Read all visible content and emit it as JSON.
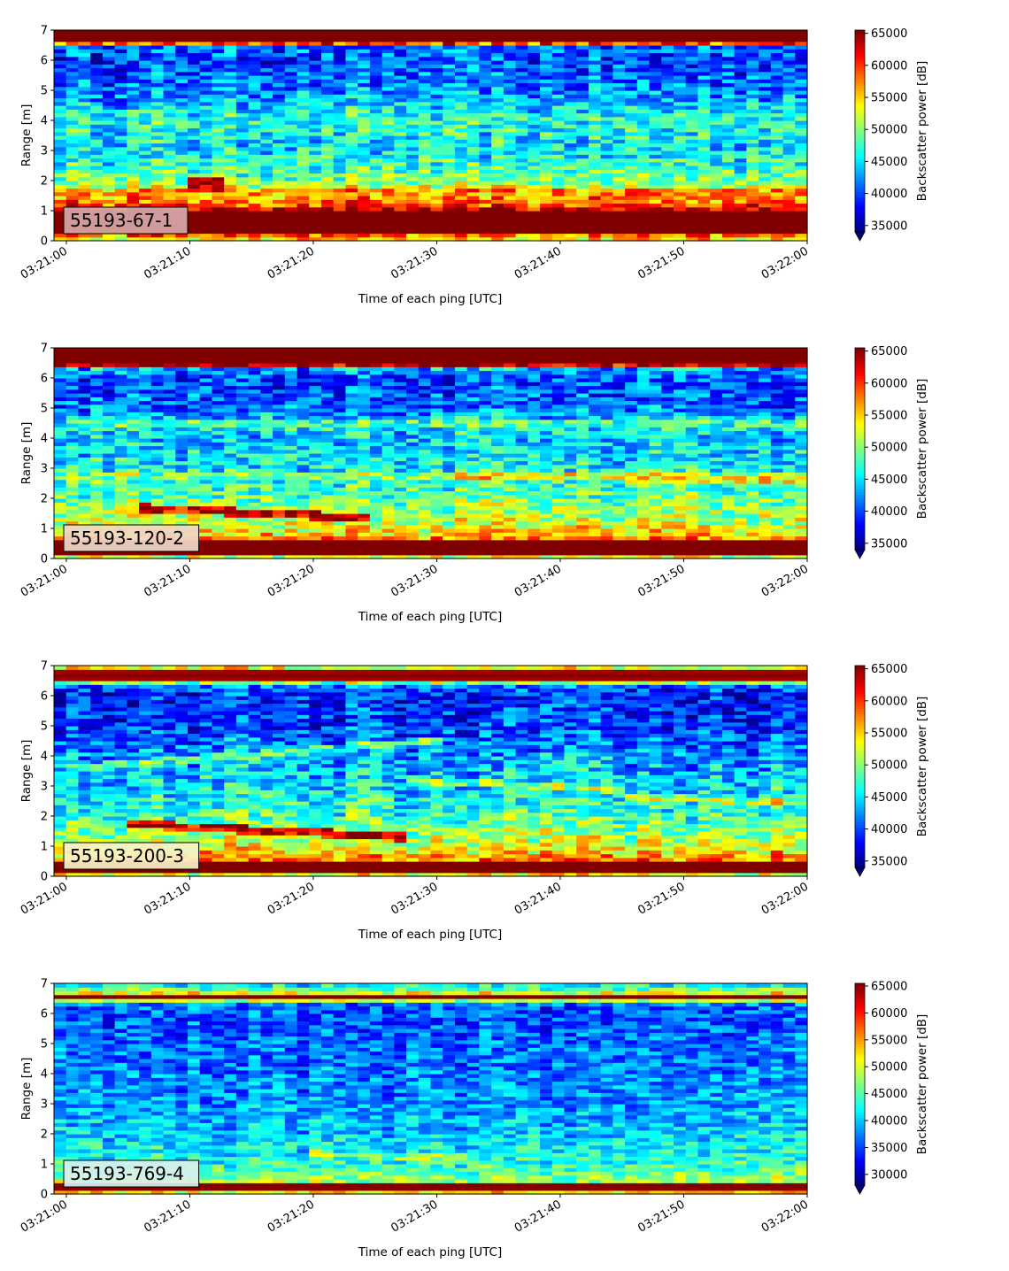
{
  "chart_data": [
    {
      "type": "heatmap",
      "label": "55193-67-1",
      "label_box_color": "#d9a8a8",
      "xlabel": "Time of each ping [UTC]",
      "ylabel": "Range [m]",
      "x_ticks": [
        "03:21:00",
        "03:21:10",
        "03:21:20",
        "03:21:30",
        "03:21:40",
        "03:21:50",
        "03:22:00"
      ],
      "x_range": [
        "03:20:59",
        "03:22:00"
      ],
      "y_ticks": [
        0,
        1,
        2,
        3,
        4,
        5,
        6,
        7
      ],
      "ylim": [
        0,
        7
      ],
      "colorbar": {
        "label": "Backscatter power [dB]",
        "ticks": [
          35000,
          40000,
          45000,
          50000,
          55000,
          60000,
          65000
        ],
        "range": [
          34000,
          65500
        ],
        "extend": "min"
      },
      "colormap": "jet",
      "range_profile": [
        {
          "range": 0.15,
          "value": 55000
        },
        {
          "range": 0.3,
          "value": 68000
        },
        {
          "range": 0.9,
          "value": 68000
        },
        {
          "range": 1.1,
          "value": 62000
        },
        {
          "range": 1.4,
          "value": 56000
        },
        {
          "range": 2.0,
          "value": 50000
        },
        {
          "range": 3.0,
          "value": 45000
        },
        {
          "range": 4.0,
          "value": 47000
        },
        {
          "range": 5.0,
          "value": 42000
        },
        {
          "range": 6.0,
          "value": 40000
        },
        {
          "range": 6.45,
          "value": 41000
        },
        {
          "range": 6.55,
          "value": 58000
        },
        {
          "range": 6.65,
          "value": 68000
        },
        {
          "range": 7.0,
          "value": 68000
        }
      ],
      "features": [
        {
          "type": "band",
          "t_start": "03:20:59",
          "t_end": "03:22:00",
          "range_start": 1.5,
          "range_end": 1.5,
          "width": 0.35,
          "value": 57000
        },
        {
          "type": "band",
          "t_start": "03:21:10",
          "t_end": "03:21:13",
          "range_start": 1.9,
          "range_end": 1.9,
          "width": 0.45,
          "value": 65000
        }
      ]
    },
    {
      "type": "heatmap",
      "label": "55193-120-2",
      "label_box_color": "#f0d8c8",
      "xlabel": "Time of each ping [UTC]",
      "ylabel": "Range [m]",
      "x_ticks": [
        "03:21:00",
        "03:21:10",
        "03:21:20",
        "03:21:30",
        "03:21:40",
        "03:21:50",
        "03:22:00"
      ],
      "x_range": [
        "03:20:59",
        "03:22:00"
      ],
      "y_ticks": [
        0,
        1,
        2,
        3,
        4,
        5,
        6,
        7
      ],
      "ylim": [
        0,
        7
      ],
      "colorbar": {
        "label": "Backscatter power [dB]",
        "ticks": [
          35000,
          40000,
          45000,
          50000,
          55000,
          60000,
          65000
        ],
        "range": [
          34000,
          65500
        ],
        "extend": "min"
      },
      "colormap": "jet",
      "range_profile": [
        {
          "range": 0.1,
          "value": 52000
        },
        {
          "range": 0.2,
          "value": 68000
        },
        {
          "range": 0.55,
          "value": 68000
        },
        {
          "range": 0.7,
          "value": 56000
        },
        {
          "range": 1.2,
          "value": 52000
        },
        {
          "range": 2.0,
          "value": 49000
        },
        {
          "range": 3.0,
          "value": 46000
        },
        {
          "range": 4.0,
          "value": 44000
        },
        {
          "range": 4.5,
          "value": 46000
        },
        {
          "range": 5.0,
          "value": 41000
        },
        {
          "range": 6.0,
          "value": 40000
        },
        {
          "range": 6.35,
          "value": 44000
        },
        {
          "range": 6.45,
          "value": 66000
        },
        {
          "range": 7.0,
          "value": 67000
        }
      ],
      "features": [
        {
          "type": "band",
          "t_start": "03:21:06",
          "t_end": "03:21:25",
          "range_start": 1.7,
          "range_end": 1.35,
          "width": 0.15,
          "value": 63000
        },
        {
          "type": "band",
          "t_start": "03:21:00",
          "t_end": "03:22:00",
          "range_start": 2.8,
          "range_end": 2.8,
          "width": 0.12,
          "value": 50000
        },
        {
          "type": "band",
          "t_start": "03:21:30",
          "t_end": "03:22:00",
          "range_start": 2.8,
          "range_end": 2.6,
          "width": 0.15,
          "value": 54000
        },
        {
          "type": "band",
          "t_start": "03:21:00",
          "t_end": "03:22:00",
          "range_start": 4.5,
          "range_end": 4.5,
          "width": 0.12,
          "value": 48000
        }
      ]
    },
    {
      "type": "heatmap",
      "label": "55193-200-3",
      "label_box_color": "#f8f2c8",
      "xlabel": "Time of each ping [UTC]",
      "ylabel": "Range [m]",
      "x_ticks": [
        "03:21:00",
        "03:21:10",
        "03:21:20",
        "03:21:30",
        "03:21:40",
        "03:21:50",
        "03:22:00"
      ],
      "x_range": [
        "03:20:59",
        "03:22:00"
      ],
      "y_ticks": [
        0,
        1,
        2,
        3,
        4,
        5,
        6,
        7
      ],
      "ylim": [
        0,
        7
      ],
      "colorbar": {
        "label": "Backscatter power [dB]",
        "ticks": [
          35000,
          40000,
          45000,
          50000,
          55000,
          60000,
          65000
        ],
        "range": [
          34000,
          65500
        ],
        "extend": "min"
      },
      "colormap": "jet",
      "range_profile": [
        {
          "range": 0.1,
          "value": 54000
        },
        {
          "range": 0.2,
          "value": 68000
        },
        {
          "range": 0.45,
          "value": 68000
        },
        {
          "range": 0.55,
          "value": 58000
        },
        {
          "range": 1.0,
          "value": 53000
        },
        {
          "range": 2.0,
          "value": 48000
        },
        {
          "range": 3.0,
          "value": 45000
        },
        {
          "range": 4.0,
          "value": 43000
        },
        {
          "range": 5.0,
          "value": 40000
        },
        {
          "range": 6.0,
          "value": 39000
        },
        {
          "range": 6.4,
          "value": 42000
        },
        {
          "range": 6.5,
          "value": 64000
        },
        {
          "range": 6.8,
          "value": 66000
        },
        {
          "range": 6.9,
          "value": 54000
        },
        {
          "range": 7.0,
          "value": 52000
        }
      ],
      "features": [
        {
          "type": "band",
          "t_start": "03:21:05",
          "t_end": "03:21:28",
          "range_start": 1.75,
          "range_end": 1.3,
          "width": 0.15,
          "value": 63000
        },
        {
          "type": "band",
          "t_start": "03:21:28",
          "t_end": "03:21:45",
          "range_start": 3.2,
          "range_end": 2.9,
          "width": 0.12,
          "value": 50000
        },
        {
          "type": "band",
          "t_start": "03:21:45",
          "t_end": "03:22:00",
          "range_start": 2.6,
          "range_end": 2.5,
          "width": 0.12,
          "value": 52000
        },
        {
          "type": "band",
          "t_start": "03:21:00",
          "t_end": "03:21:30",
          "range_start": 3.6,
          "range_end": 4.5,
          "width": 0.12,
          "value": 48000
        }
      ]
    },
    {
      "type": "heatmap",
      "label": "55193-769-4",
      "label_box_color": "#d8f0f0",
      "xlabel": "Time of each ping [UTC]",
      "ylabel": "Range [m]",
      "x_ticks": [
        "03:21:00",
        "03:21:10",
        "03:21:20",
        "03:21:30",
        "03:21:40",
        "03:21:50",
        "03:22:00"
      ],
      "x_range": [
        "03:20:59",
        "03:22:00"
      ],
      "y_ticks": [
        0,
        1,
        2,
        3,
        4,
        5,
        6,
        7
      ],
      "ylim": [
        0,
        7
      ],
      "colorbar": {
        "label": "Backscatter power [dB]",
        "ticks": [
          30000,
          35000,
          40000,
          45000,
          50000,
          55000,
          60000,
          65000
        ],
        "range": [
          28000,
          65500
        ],
        "extend": "min"
      },
      "colormap": "jet",
      "range_profile": [
        {
          "range": 0.1,
          "value": 52000
        },
        {
          "range": 0.2,
          "value": 67000
        },
        {
          "range": 0.32,
          "value": 67000
        },
        {
          "range": 0.4,
          "value": 48000
        },
        {
          "range": 1.0,
          "value": 43000
        },
        {
          "range": 2.0,
          "value": 40000
        },
        {
          "range": 3.0,
          "value": 38000
        },
        {
          "range": 4.0,
          "value": 37000
        },
        {
          "range": 5.0,
          "value": 36000
        },
        {
          "range": 6.0,
          "value": 35000
        },
        {
          "range": 6.4,
          "value": 37000
        },
        {
          "range": 6.5,
          "value": 67000
        },
        {
          "range": 6.6,
          "value": 66000
        },
        {
          "range": 6.7,
          "value": 48000
        },
        {
          "range": 6.85,
          "value": 44000
        },
        {
          "range": 7.0,
          "value": 40000
        }
      ],
      "features": [
        {
          "type": "band",
          "t_start": "03:21:20",
          "t_end": "03:21:32",
          "range_start": 1.35,
          "range_end": 1.2,
          "width": 0.1,
          "value": 47000
        }
      ]
    }
  ]
}
